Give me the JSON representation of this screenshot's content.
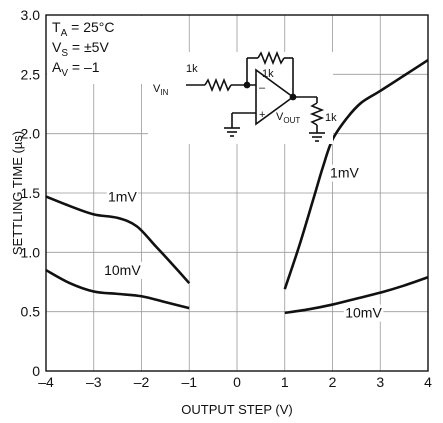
{
  "chart_data": {
    "type": "line",
    "xlabel": "OUTPUT STEP (V)",
    "ylabel": "SETTLING TIME (µs)",
    "xlim": [
      -4,
      4
    ],
    "ylim": [
      0,
      3.0
    ],
    "xticks": [
      "–4",
      "–3",
      "–2",
      "–1",
      "0",
      "1",
      "2",
      "3",
      "4"
    ],
    "yticks": [
      "0",
      "0.5",
      "1.0",
      "1.5",
      "2.0",
      "2.5",
      "3.0"
    ],
    "grid": true,
    "conditions": {
      "ta_main": "T",
      "ta_sub": "A",
      "ta_rest": " = 25°C",
      "vs_main": "V",
      "vs_sub": "S",
      "vs_rest": " = ±5V",
      "av_main": "A",
      "av_sub": "V",
      "av_rest": " = –1"
    },
    "circuit_labels": {
      "r_in": "1k",
      "r_fb": "1k",
      "r_load": "1k",
      "vin_main": "V",
      "vin_sub": "IN",
      "vout_main": "V",
      "vout_sub": "OUT",
      "minus": "–",
      "plus": "+"
    },
    "series": [
      {
        "name": "1mV",
        "segments": [
          [
            [
              -4,
              1.47
            ],
            [
              -3.5,
              1.39
            ],
            [
              -3,
              1.32
            ],
            [
              -2.5,
              1.29
            ],
            [
              -2.1,
              1.22
            ],
            [
              -1.7,
              1.05
            ],
            [
              -1.4,
              0.92
            ],
            [
              -1,
              0.74
            ]
          ],
          [
            [
              1,
              0.69
            ],
            [
              1.3,
              1.05
            ],
            [
              1.6,
              1.45
            ],
            [
              1.8,
              1.72
            ],
            [
              2,
              1.95
            ],
            [
              2.3,
              2.13
            ],
            [
              2.6,
              2.26
            ],
            [
              3,
              2.36
            ],
            [
              3.5,
              2.49
            ],
            [
              4,
              2.62
            ]
          ]
        ]
      },
      {
        "name": "10mV",
        "segments": [
          [
            [
              -4,
              0.85
            ],
            [
              -3.5,
              0.74
            ],
            [
              -3,
              0.67
            ],
            [
              -2.5,
              0.65
            ],
            [
              -2,
              0.63
            ],
            [
              -1.5,
              0.58
            ],
            [
              -1,
              0.53
            ]
          ],
          [
            [
              1,
              0.49
            ],
            [
              1.5,
              0.52
            ],
            [
              2,
              0.56
            ],
            [
              2.5,
              0.61
            ],
            [
              3,
              0.66
            ],
            [
              3.5,
              0.72
            ],
            [
              4,
              0.79
            ]
          ]
        ]
      }
    ],
    "annotations": [
      {
        "text": "1mV",
        "x": -2.4,
        "y": 1.43
      },
      {
        "text": "1mV",
        "x": 2.25,
        "y": 1.63
      },
      {
        "text": "10mV",
        "x": -2.4,
        "y": 0.81
      },
      {
        "text": "10mV",
        "x": 2.65,
        "y": 0.45
      }
    ]
  }
}
